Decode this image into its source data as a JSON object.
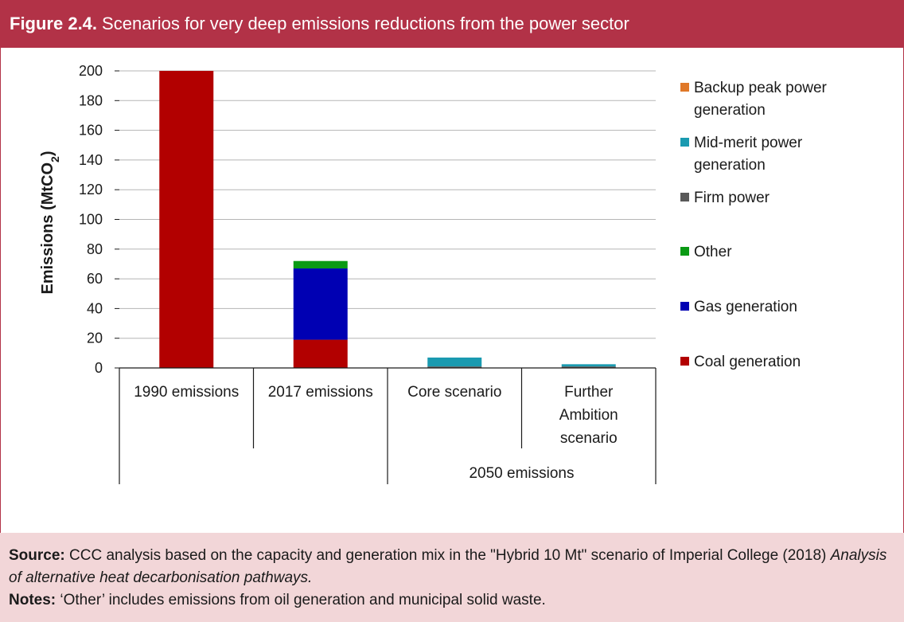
{
  "header": {
    "figure_label": "Figure 2.4.",
    "title": "Scenarios for very deep emissions reductions from the power sector"
  },
  "chart_data": {
    "type": "bar",
    "stacked": true,
    "ylabel": "Emissions (MtCO",
    "ylabel_sub": "2",
    "ylabel_end": ")",
    "ylim": [
      0,
      200
    ],
    "yticks": [
      0,
      20,
      40,
      60,
      80,
      100,
      120,
      140,
      160,
      180,
      200
    ],
    "grid": true,
    "legend_position": "right",
    "categories": [
      {
        "lines": [
          "1990 emissions"
        ]
      },
      {
        "lines": [
          "2017 emissions"
        ]
      },
      {
        "lines": [
          "Core scenario"
        ]
      },
      {
        "lines": [
          "Further",
          "Ambition",
          "scenario"
        ]
      }
    ],
    "group_label": "2050 emissions",
    "series": [
      {
        "name": "Coal generation",
        "color": "#b20000",
        "values": [
          200,
          19,
          0,
          0
        ]
      },
      {
        "name": "Gas generation",
        "color": "#0000b3",
        "values": [
          0,
          48,
          0,
          0
        ]
      },
      {
        "name": "Other",
        "color": "#0a9a14",
        "values": [
          0,
          5,
          0,
          0
        ]
      },
      {
        "name": "Firm power",
        "color": "#595959",
        "values": [
          0,
          0,
          1,
          1
        ]
      },
      {
        "name": "Mid-merit power generation",
        "color": "#1a9ab0",
        "values": [
          0,
          0,
          6,
          1.5
        ]
      },
      {
        "name": "Backup peak power generation",
        "color": "#e07828",
        "values": [
          0,
          0,
          0,
          0
        ]
      }
    ],
    "legend_lines": [
      [
        "Backup peak power",
        "generation"
      ],
      [
        "Mid-merit power",
        "generation"
      ],
      [
        "Firm power"
      ],
      [
        "Other"
      ],
      [
        "Gas generation"
      ],
      [
        "Coal generation"
      ]
    ]
  },
  "footer": {
    "source_label": "Source:",
    "source_text": " CCC analysis based on the capacity and generation mix in the \"Hybrid 10 Mt\" scenario of Imperial College (2018) ",
    "source_italic": "Analysis of alternative heat decarbonisation pathways.",
    "notes_label": "Notes:",
    "notes_text": " ‘Other’ includes emissions from oil generation and municipal solid waste."
  }
}
